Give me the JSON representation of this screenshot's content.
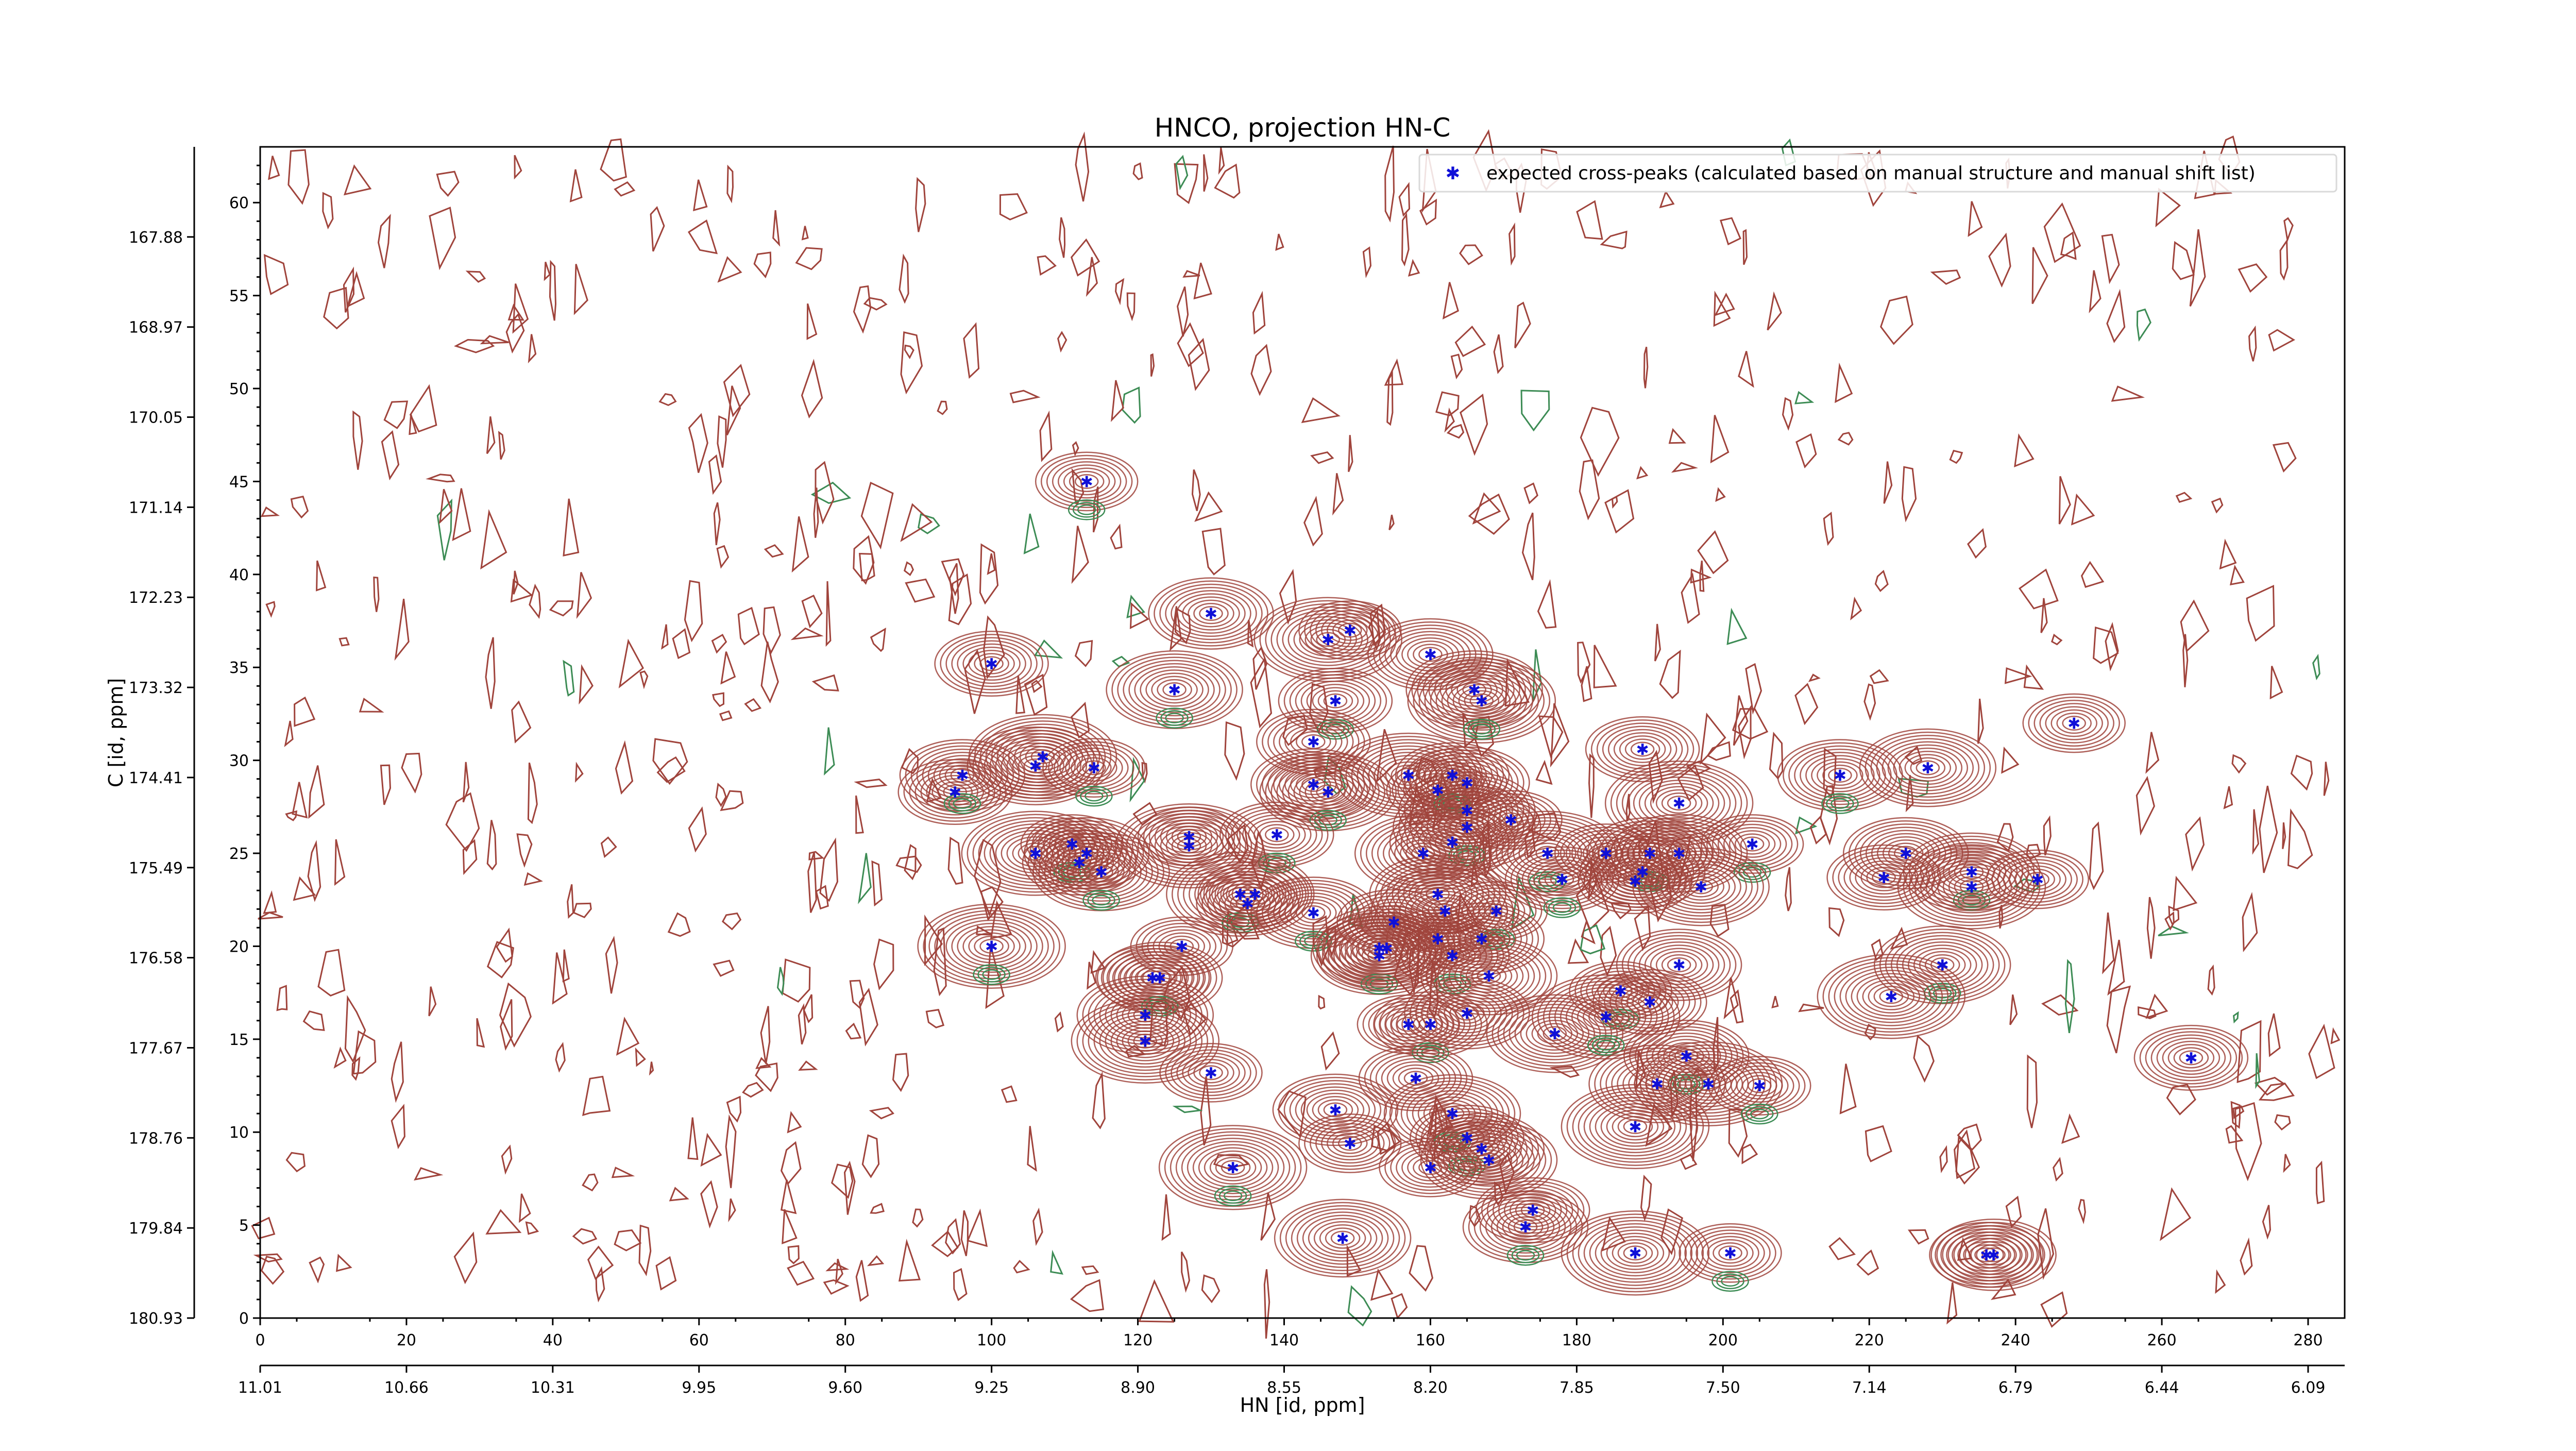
{
  "chart_data": {
    "type": "scatter",
    "title": "HNCO, projection HN-C",
    "xlabel": "HN [id, ppm]",
    "ylabel": "C [id, ppm]",
    "x_index_ticks": [
      "0",
      "20",
      "40",
      "60",
      "80",
      "100",
      "120",
      "140",
      "160",
      "180",
      "200",
      "220",
      "240",
      "260",
      "280"
    ],
    "x_ppm_ticks": [
      "11.01",
      "10.66",
      "10.31",
      "9.95",
      "9.60",
      "9.25",
      "8.90",
      "8.55",
      "8.20",
      "7.85",
      "7.50",
      "7.14",
      "6.79",
      "6.44",
      "6.09"
    ],
    "y_index_ticks": [
      "0",
      "5",
      "10",
      "15",
      "20",
      "25",
      "30",
      "35",
      "40",
      "45",
      "50",
      "55",
      "60"
    ],
    "y_ppm_ticks": [
      "167.88",
      "168.97",
      "170.05",
      "171.14",
      "172.23",
      "173.32",
      "174.41",
      "175.49",
      "176.58",
      "177.67",
      "178.76",
      "179.84",
      "180.93"
    ],
    "xlim": [
      0,
      285
    ],
    "ylim": [
      0,
      63
    ],
    "legend": {
      "position": "top-right",
      "label": "expected cross-peaks (calculated based on manual structure and manual shift list)"
    },
    "colors": {
      "positive_contours": "#a0443c",
      "negative_contours": "#3d8c55",
      "markers": "#1010d8"
    },
    "series": [
      {
        "name": "expected cross-peaks (calculated based on manual structure and manual shift list)",
        "points": [
          [
            113,
            45
          ],
          [
            100,
            35.2
          ],
          [
            130,
            37.9
          ],
          [
            125,
            33.8
          ],
          [
            146,
            36.5
          ],
          [
            149,
            37
          ],
          [
            147,
            33.2
          ],
          [
            160,
            35.7
          ],
          [
            166,
            33.8
          ],
          [
            167,
            33.2
          ],
          [
            248,
            32
          ],
          [
            95,
            28.3
          ],
          [
            96,
            29.2
          ],
          [
            106,
            29.7
          ],
          [
            107,
            30.2
          ],
          [
            114,
            29.6
          ],
          [
            144,
            31
          ],
          [
            144,
            28.7
          ],
          [
            146,
            28.3
          ],
          [
            157,
            29.2
          ],
          [
            161,
            28.4
          ],
          [
            163,
            29.2
          ],
          [
            165,
            28.8
          ],
          [
            165,
            27.3
          ],
          [
            165,
            26.4
          ],
          [
            171,
            26.8
          ],
          [
            189,
            30.6
          ],
          [
            216,
            29.2
          ],
          [
            228,
            29.6
          ],
          [
            106,
            25
          ],
          [
            111,
            25.5
          ],
          [
            112,
            24.5
          ],
          [
            113,
            25
          ],
          [
            115,
            24
          ],
          [
            127,
            25.4
          ],
          [
            127,
            25.9
          ],
          [
            139,
            26
          ],
          [
            163,
            25.6
          ],
          [
            159,
            25
          ],
          [
            176,
            25
          ],
          [
            184,
            25
          ],
          [
            188,
            23.5
          ],
          [
            190,
            25
          ],
          [
            194,
            25
          ],
          [
            194,
            27.7
          ],
          [
            204,
            25.5
          ],
          [
            222,
            23.7
          ],
          [
            225,
            25
          ],
          [
            234,
            24
          ],
          [
            234,
            23.2
          ],
          [
            243,
            23.6
          ],
          [
            178,
            23.6
          ],
          [
            189,
            24
          ],
          [
            197,
            23.2
          ],
          [
            134,
            22.8
          ],
          [
            135,
            22.3
          ],
          [
            136,
            22.8
          ],
          [
            144,
            21.8
          ],
          [
            161,
            22.8
          ],
          [
            162,
            21.9
          ],
          [
            169,
            21.9
          ],
          [
            155,
            21.3
          ],
          [
            153,
            19.9
          ],
          [
            153,
            19.5
          ],
          [
            154,
            19.9
          ],
          [
            161,
            20.4
          ],
          [
            163,
            19.5
          ],
          [
            167,
            20.4
          ],
          [
            168,
            18.4
          ],
          [
            100,
            20
          ],
          [
            126,
            20
          ],
          [
            122,
            18.3
          ],
          [
            123,
            18.3
          ],
          [
            121,
            16.3
          ],
          [
            121,
            14.9
          ],
          [
            186,
            17.6
          ],
          [
            190,
            17
          ],
          [
            194,
            19
          ],
          [
            230,
            19
          ],
          [
            223,
            17.3
          ],
          [
            157,
            15.8
          ],
          [
            160,
            15.8
          ],
          [
            165,
            16.4
          ],
          [
            177,
            15.3
          ],
          [
            184,
            16.2
          ],
          [
            130,
            13.2
          ],
          [
            158,
            12.9
          ],
          [
            195,
            14.1
          ],
          [
            191,
            12.6
          ],
          [
            198,
            12.6
          ],
          [
            205,
            12.5
          ],
          [
            264,
            14
          ],
          [
            147,
            11.2
          ],
          [
            163,
            11
          ],
          [
            188,
            10.3
          ],
          [
            149,
            9.4
          ],
          [
            165,
            9.7
          ],
          [
            167,
            9.1
          ],
          [
            168,
            8.5
          ],
          [
            133,
            8.1
          ],
          [
            160,
            8.1
          ],
          [
            174,
            5.8
          ],
          [
            173,
            4.9
          ],
          [
            148,
            4.3
          ],
          [
            188,
            3.5
          ],
          [
            201,
            3.5
          ],
          [
            236,
            3.4
          ],
          [
            237,
            3.4
          ]
        ]
      }
    ]
  }
}
